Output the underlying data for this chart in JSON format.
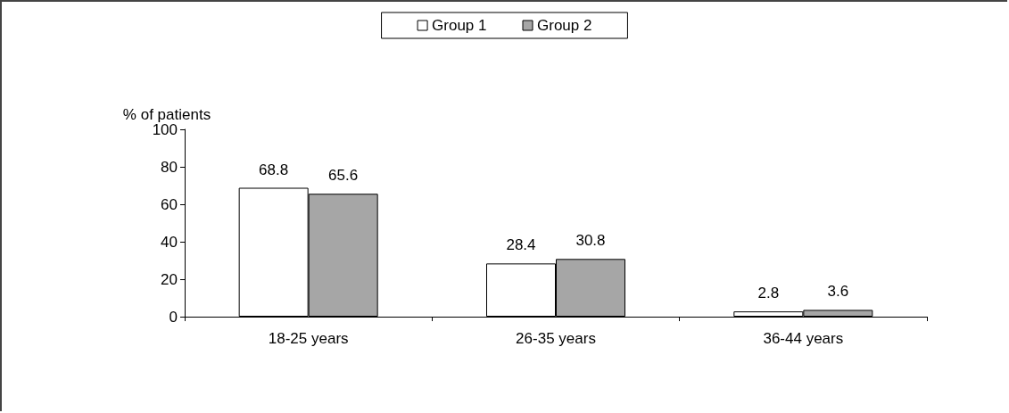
{
  "chart_data": {
    "type": "bar",
    "ylabel": "% of patients",
    "categories": [
      "18-25 years",
      "26-35 years",
      "36-44 years"
    ],
    "series": [
      {
        "name": "Group 1",
        "color": "#ffffff",
        "values": [
          68.8,
          28.4,
          2.8
        ]
      },
      {
        "name": "Group 2",
        "color": "#a6a6a6",
        "values": [
          65.6,
          30.8,
          3.6
        ]
      }
    ],
    "ylim": [
      0,
      100
    ],
    "yticks": [
      0,
      20,
      40,
      60,
      80,
      100
    ],
    "grid": false,
    "legend": "top",
    "data_labels": true
  }
}
